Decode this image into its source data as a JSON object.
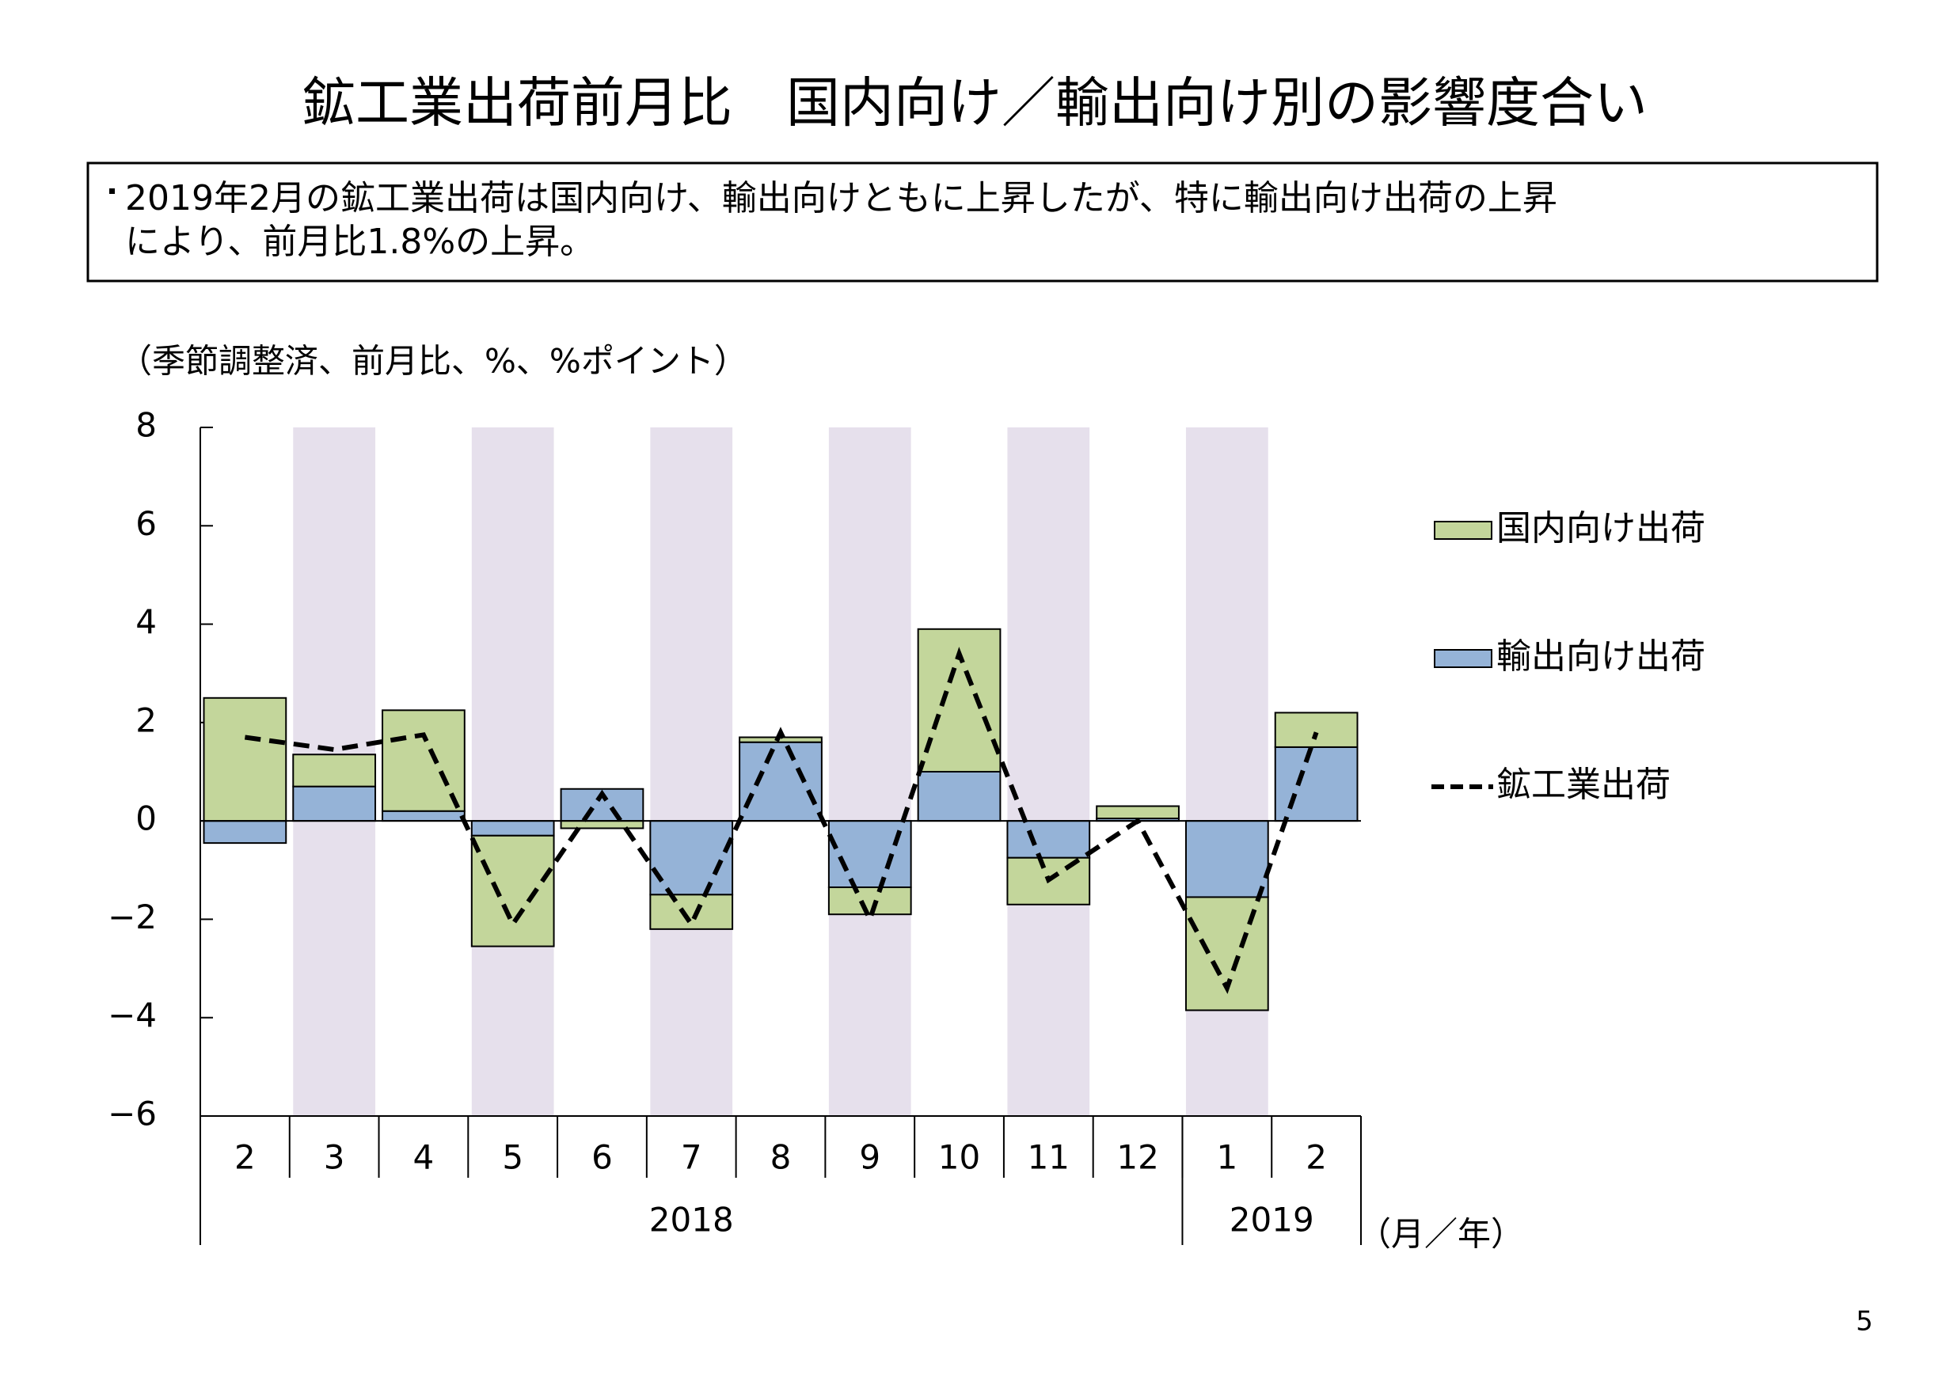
{
  "chart_data": {
    "type": "bar",
    "title": "鉱工業出荷前月比　国内向け／輸出向け別の影響度合い",
    "note": [
      "2019年2月の鉱工業出荷は国内向け、輸出向けともに上昇したが、特に輸出向け出荷の上昇",
      "により、前月比1.8%の上昇。"
    ],
    "y_label": "（季節調整済、前月比、%、%ポイント）",
    "x_label": "（月／年）",
    "page_number": "5",
    "categories": [
      "2",
      "3",
      "4",
      "5",
      "6",
      "7",
      "8",
      "9",
      "10",
      "11",
      "12",
      "1",
      "2"
    ],
    "year_groups": [
      {
        "label": "2018",
        "count": 11
      },
      {
        "label": "2019",
        "count": 2
      }
    ],
    "series": [
      {
        "name": "国内向け出荷",
        "type": "bar",
        "color": "#c3d69b",
        "values": [
          2.5,
          0.65,
          2.05,
          -2.25,
          -0.15,
          -0.7,
          0.1,
          -0.55,
          2.9,
          -0.95,
          0.25,
          -2.3,
          0.7
        ]
      },
      {
        "name": "輸出向け出荷",
        "type": "bar",
        "color": "#95b3d7",
        "values": [
          -0.45,
          0.7,
          0.2,
          -0.3,
          0.65,
          -1.5,
          1.6,
          -1.35,
          1.0,
          -0.75,
          0.05,
          -1.55,
          1.5
        ]
      },
      {
        "name": "鉱工業出荷",
        "type": "line",
        "color": "#000000",
        "values": [
          1.7,
          1.45,
          1.75,
          -2.1,
          0.55,
          -2.1,
          1.8,
          -2.0,
          3.4,
          -1.2,
          0.0,
          -3.4,
          1.8
        ]
      }
    ],
    "ylim": [
      -6,
      8
    ],
    "yticks": [
      {
        "value": -6,
        "label": "−6"
      },
      {
        "value": -4,
        "label": "−4"
      },
      {
        "value": -2,
        "label": "−2"
      },
      0,
      2,
      4,
      6,
      8
    ],
    "shading_color": "#e6e0ec"
  }
}
